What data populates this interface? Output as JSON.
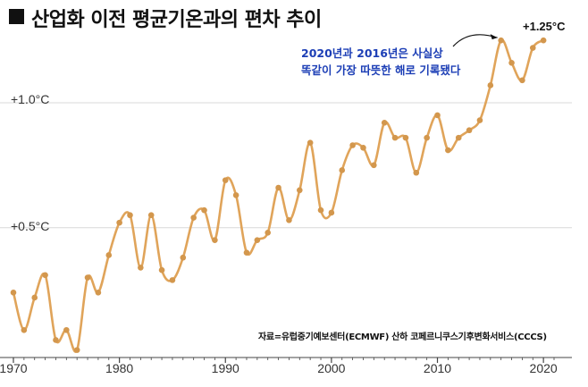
{
  "chart_data": {
    "type": "line",
    "title": "산업화 이전 평균기온과의 편차 추이",
    "xlabel": "",
    "ylabel": "",
    "x": [
      1970,
      1971,
      1972,
      1973,
      1974,
      1975,
      1976,
      1977,
      1978,
      1979,
      1980,
      1981,
      1982,
      1983,
      1984,
      1985,
      1986,
      1987,
      1988,
      1989,
      1990,
      1991,
      1992,
      1993,
      1994,
      1995,
      1996,
      1997,
      1998,
      1999,
      2000,
      2001,
      2002,
      2003,
      2004,
      2005,
      2006,
      2007,
      2008,
      2009,
      2010,
      2011,
      2012,
      2013,
      2014,
      2015,
      2016,
      2017,
      2018,
      2019,
      2020
    ],
    "values": [
      0.24,
      0.09,
      0.22,
      0.31,
      0.05,
      0.09,
      0.01,
      0.3,
      0.24,
      0.39,
      0.52,
      0.55,
      0.34,
      0.55,
      0.33,
      0.29,
      0.38,
      0.54,
      0.57,
      0.45,
      0.69,
      0.63,
      0.4,
      0.45,
      0.48,
      0.66,
      0.53,
      0.65,
      0.84,
      0.57,
      0.56,
      0.73,
      0.83,
      0.82,
      0.75,
      0.92,
      0.86,
      0.86,
      0.72,
      0.86,
      0.95,
      0.81,
      0.86,
      0.89,
      0.93,
      1.07,
      1.25,
      1.16,
      1.09,
      1.22,
      1.25
    ],
    "xlim": [
      1970,
      2021
    ],
    "ylim": [
      -0.02,
      1.34
    ],
    "y_tick_labels": [
      {
        "value": 0.5,
        "label": "+0.5°C"
      },
      {
        "value": 1.0,
        "label": "+1.0°C"
      }
    ],
    "x_ticks": [
      1970,
      1980,
      1990,
      2000,
      2010,
      2020
    ],
    "annotation": {
      "line1": "2020년과 2016년은 사실상",
      "line2": "똑같이 가장 따뜻한 해로 기록됐다",
      "peak_label": "+1.25°C",
      "target_year": 2016
    },
    "source": "자료=유럽중기예보센터(ECMWF) 산하 코페르니쿠스기후변화서비스(CCCS)",
    "grid": "y-major",
    "colors": {
      "line": "#e0a45a",
      "marker": "#d3974d",
      "grid": "#d8d8d8",
      "annotation": "#1d3fb6"
    }
  }
}
